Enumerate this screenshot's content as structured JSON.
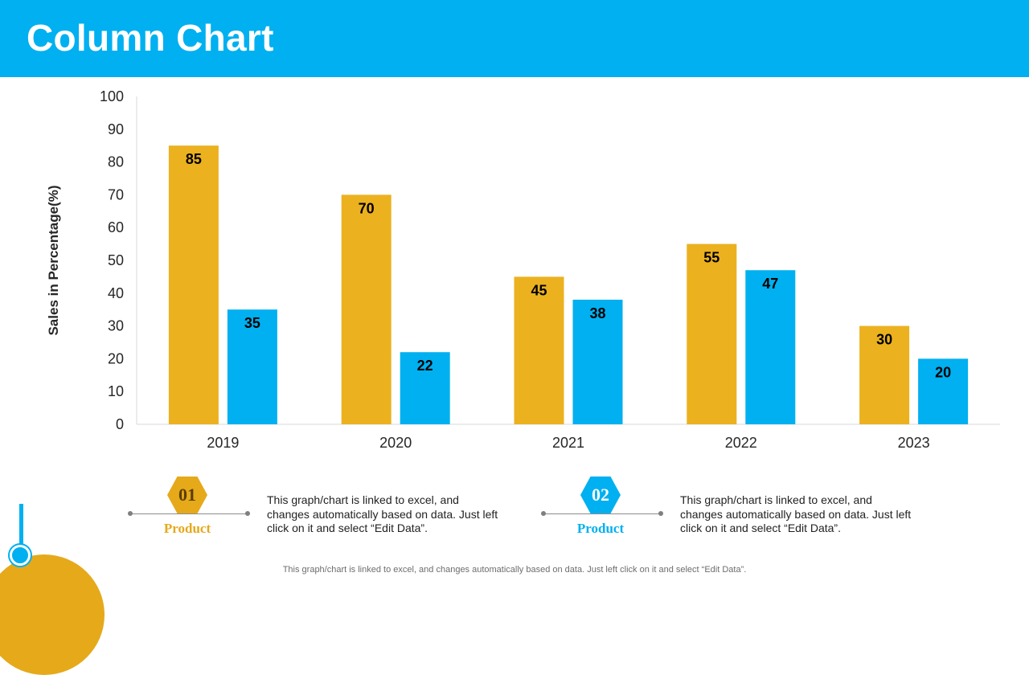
{
  "page": {
    "title": "Column Chart",
    "footer": "This graph/chart is linked to excel,  and changes automatically based on data. Just left click on it and select “Edit Data”."
  },
  "colors": {
    "header": "#00B0F0",
    "series1": "#EBB11F",
    "series2": "#00B0F0",
    "product1": "#E5A91A",
    "product2": "#00B0F0"
  },
  "chart_data": {
    "type": "bar",
    "title": "",
    "xlabel": "",
    "ylabel": "Sales in Percentage(%)",
    "ylim": [
      0,
      100
    ],
    "yticks": [
      0,
      10,
      20,
      30,
      40,
      50,
      60,
      70,
      80,
      90,
      100
    ],
    "categories": [
      "2019",
      "2020",
      "2021",
      "2022",
      "2023"
    ],
    "series": [
      {
        "name": "Product 01",
        "values": [
          85,
          70,
          45,
          55,
          30
        ]
      },
      {
        "name": "Product 02",
        "values": [
          35,
          22,
          38,
          47,
          20
        ]
      }
    ],
    "data_labels": true,
    "grid": false
  },
  "legend": [
    {
      "number": "01",
      "label": "Product",
      "text": "This graph/chart is linked to excel, and changes automatically based on data.  Just left click on it and select “Edit Data”."
    },
    {
      "number": "02",
      "label": "Product",
      "text": "This graph/chart is linked to excel, and changes automatically based on data.  Just left click on it and select “Edit Data”."
    }
  ]
}
